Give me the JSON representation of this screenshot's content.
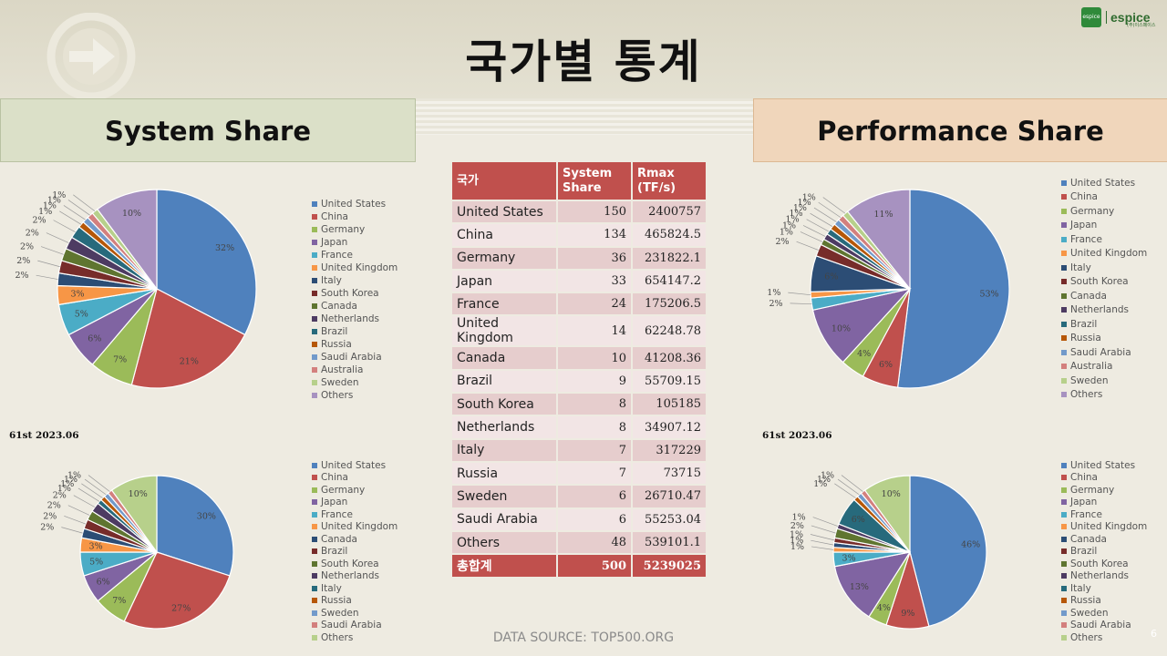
{
  "title": "국가별 통계",
  "logo": {
    "brand": "espice",
    "sub": "(주)이스페이스"
  },
  "left_header": "System Share",
  "right_header": "Performance Share",
  "subtitle_left": "61st 2023.06",
  "subtitle_right": "61st 2023.06",
  "table": {
    "headers": [
      "국가",
      "System Share",
      "Rmax (TF/s)"
    ],
    "rows": [
      [
        "United States",
        "150",
        "2400757"
      ],
      [
        "China",
        "134",
        "465824.5"
      ],
      [
        "Germany",
        "36",
        "231822.1"
      ],
      [
        "Japan",
        "33",
        "654147.2"
      ],
      [
        "France",
        "24",
        "175206.5"
      ],
      [
        "United Kingdom",
        "14",
        "62248.78"
      ],
      [
        "Canada",
        "10",
        "41208.36"
      ],
      [
        "Brazil",
        "9",
        "55709.15"
      ],
      [
        "South Korea",
        "8",
        "105185"
      ],
      [
        "Netherlands",
        "8",
        "34907.12"
      ],
      [
        "Italy",
        "7",
        "317229"
      ],
      [
        "Russia",
        "7",
        "73715"
      ],
      [
        "Sweden",
        "6",
        "26710.47"
      ],
      [
        "Saudi Arabia",
        "6",
        "55253.04"
      ],
      [
        "Others",
        "48",
        "539101.1"
      ]
    ],
    "total": [
      "총합계",
      "500",
      "5239025"
    ]
  },
  "source": "DATA SOURCE: TOP500.ORG",
  "page_number": "6",
  "chart_data": [
    {
      "type": "pie",
      "title": "",
      "categories": [
        "United States",
        "China",
        "Germany",
        "Japan",
        "France",
        "United Kingdom",
        "Italy",
        "South Korea",
        "Canada",
        "Netherlands",
        "Brazil",
        "Russia",
        "Saudi Arabia",
        "Australia",
        "Sweden",
        "Others"
      ],
      "values": [
        32,
        21,
        7,
        6,
        5,
        3,
        2,
        2,
        2,
        2,
        2,
        1,
        1,
        1,
        1,
        10
      ],
      "labels": [
        "32%",
        "21%",
        "7%",
        "6%",
        "5%",
        "3%",
        "2%",
        "2%",
        "2%",
        "2%",
        "2%",
        "1%",
        "1%",
        "1%",
        "1%",
        "10%"
      ],
      "colors": [
        "#4f81bd",
        "#c0504d",
        "#9bbb59",
        "#8064a2",
        "#4bacc6",
        "#f79646",
        "#2c4d75",
        "#772c2a",
        "#5f7530",
        "#4d3b62",
        "#276a7c",
        "#b65708",
        "#729aca",
        "#d3807e",
        "#b7d08b",
        "#a792c0"
      ],
      "legend": "right"
    },
    {
      "type": "pie",
      "title": "",
      "categories": [
        "United States",
        "China",
        "Germany",
        "Japan",
        "France",
        "United Kingdom",
        "Italy",
        "South Korea",
        "Canada",
        "Netherlands",
        "Brazil",
        "Russia",
        "Saudi Arabia",
        "Australia",
        "Sweden",
        "Others"
      ],
      "values": [
        53,
        6,
        4,
        10,
        2,
        1,
        6,
        2,
        1,
        1,
        1,
        1,
        1,
        1,
        1,
        11
      ],
      "labels": [
        "53%",
        "6%",
        "4%",
        "10%",
        "2%",
        "1%",
        "6%",
        "2%",
        "1%",
        "1%",
        "1%",
        "1%",
        "1%",
        "1%",
        "1%",
        "11%"
      ],
      "colors": [
        "#4f81bd",
        "#c0504d",
        "#9bbb59",
        "#8064a2",
        "#4bacc6",
        "#f79646",
        "#2c4d75",
        "#772c2a",
        "#5f7530",
        "#4d3b62",
        "#276a7c",
        "#b65708",
        "#729aca",
        "#d3807e",
        "#b7d08b",
        "#a792c0"
      ],
      "legend": "right"
    },
    {
      "type": "pie",
      "title": "61st 2023.06",
      "categories": [
        "United States",
        "China",
        "Germany",
        "Japan",
        "France",
        "United Kingdom",
        "Canada",
        "Brazil",
        "South Korea",
        "Netherlands",
        "Italy",
        "Russia",
        "Sweden",
        "Saudi Arabia",
        "Others"
      ],
      "values": [
        30,
        27,
        7,
        6,
        5,
        3,
        2,
        2,
        2,
        2,
        1,
        1,
        1,
        1,
        10
      ],
      "labels": [
        "30%",
        "27%",
        "7%",
        "6%",
        "5%",
        "3%",
        "2%",
        "2%",
        "2%",
        "2%",
        "1%",
        "1%",
        "1%",
        "1%",
        "10%"
      ],
      "colors": [
        "#4f81bd",
        "#c0504d",
        "#9bbb59",
        "#8064a2",
        "#4bacc6",
        "#f79646",
        "#2c4d75",
        "#772c2a",
        "#5f7530",
        "#4d3b62",
        "#276a7c",
        "#b65708",
        "#729aca",
        "#d3807e",
        "#b7d08b"
      ],
      "legend": "right"
    },
    {
      "type": "pie",
      "title": "61st 2023.06",
      "categories": [
        "United States",
        "China",
        "Germany",
        "Japan",
        "France",
        "United Kingdom",
        "Canada",
        "Brazil",
        "South Korea",
        "Netherlands",
        "Italy",
        "Russia",
        "Sweden",
        "Saudi Arabia",
        "Others"
      ],
      "values": [
        46,
        9,
        4,
        13,
        3,
        1,
        1,
        1,
        2,
        1,
        6,
        1,
        1,
        1,
        10
      ],
      "labels": [
        "46%",
        "9%",
        "4%",
        "13%",
        "3%",
        "1%",
        "1%",
        "1%",
        "2%",
        "1%",
        "6%",
        "1%",
        "1%",
        "1%",
        "10%"
      ],
      "colors": [
        "#4f81bd",
        "#c0504d",
        "#9bbb59",
        "#8064a2",
        "#4bacc6",
        "#f79646",
        "#2c4d75",
        "#772c2a",
        "#5f7530",
        "#4d3b62",
        "#276a7c",
        "#b65708",
        "#729aca",
        "#d3807e",
        "#b7d08b"
      ],
      "legend": "right"
    }
  ]
}
